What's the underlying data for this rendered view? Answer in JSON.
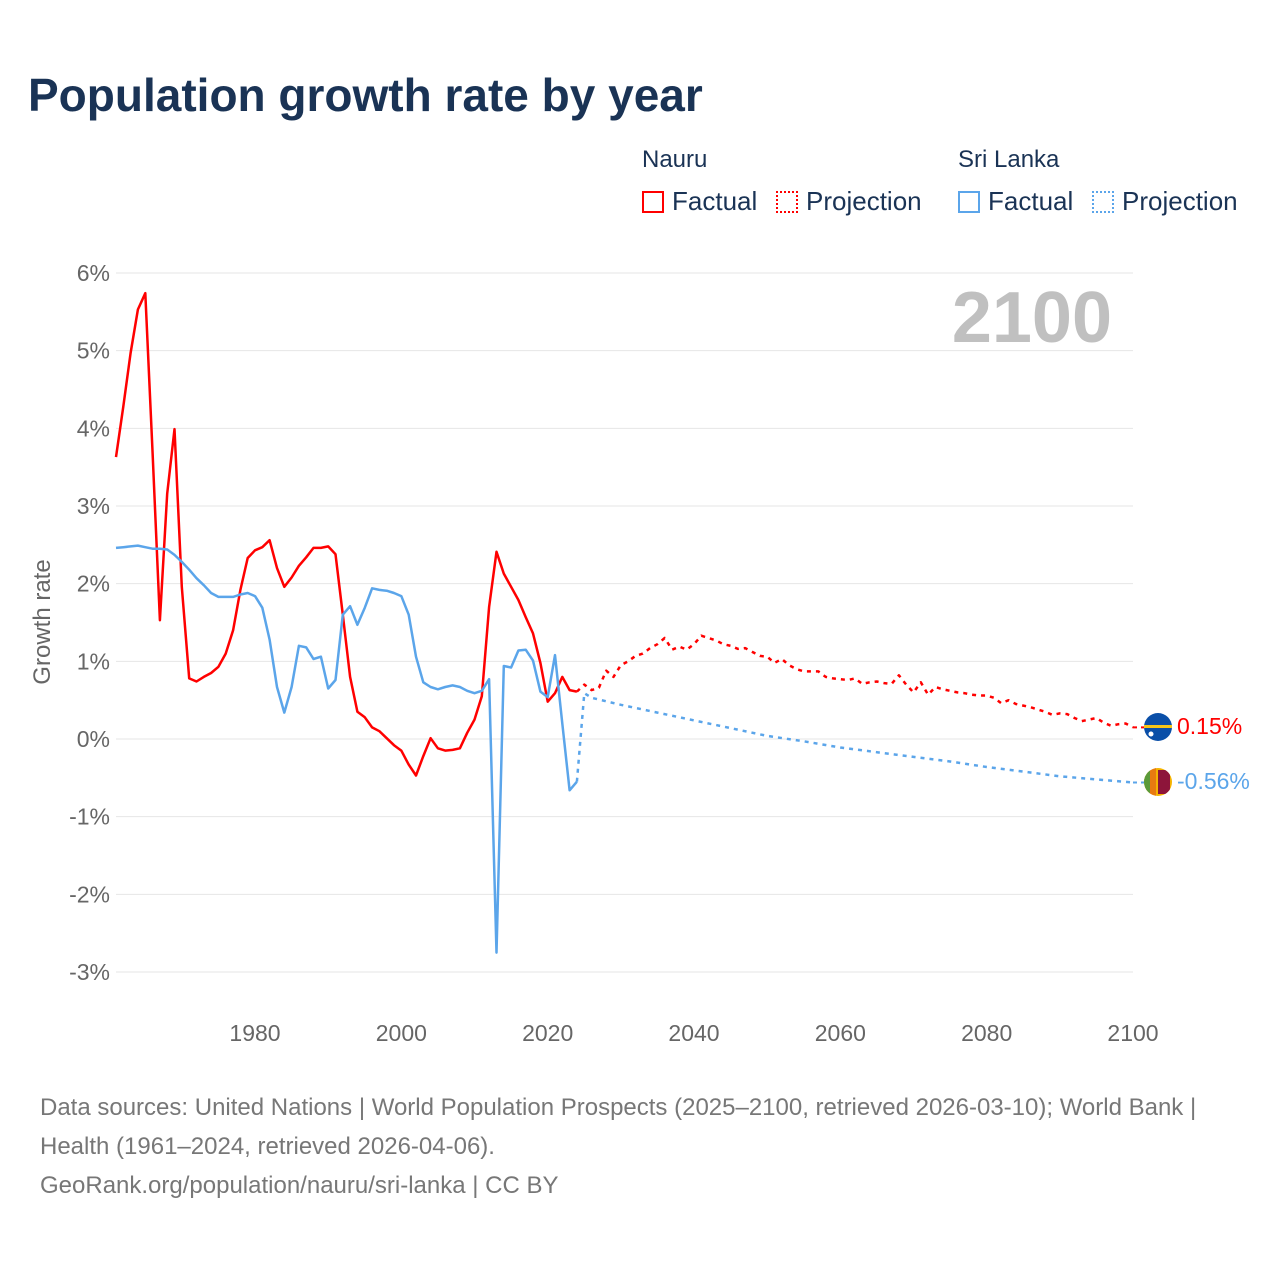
{
  "title": "Population growth rate by year",
  "legend": {
    "groups": [
      {
        "name": "Nauru",
        "factual": "Factual",
        "projection": "Projection",
        "color": "#ff0000"
      },
      {
        "name": "Sri Lanka",
        "factual": "Factual",
        "projection": "Projection",
        "color": "#5ba5ea"
      }
    ]
  },
  "year_label": "2100",
  "end_labels": {
    "nauru": "0.15%",
    "sri_lanka": "-0.56%"
  },
  "source": {
    "line1": "Data sources: United Nations | World Population Prospects (2025–2100, retrieved 2026-03-10); World Bank | Health (1961–2024, retrieved 2026-04-06).",
    "line2": "GeoRank.org/population/nauru/sri-lanka | CC BY"
  },
  "chart_data": {
    "type": "line",
    "title": "Population growth rate by year",
    "xlabel": "",
    "ylabel": "Growth rate",
    "xlim": [
      1961,
      2100
    ],
    "ylim": [
      -3,
      6
    ],
    "x_ticks": [
      1980,
      2000,
      2020,
      2040,
      2060,
      2080,
      2100
    ],
    "x_tick_labels": [
      "1980",
      "2000",
      "2020",
      "2040",
      "2060",
      "2080",
      "2100"
    ],
    "y_ticks": [
      6,
      5,
      4,
      3,
      2,
      1,
      0,
      -1,
      -2,
      -3
    ],
    "y_tick_labels": [
      "6%",
      "5%",
      "4%",
      "3%",
      "2%",
      "1%",
      "0%",
      "-1%",
      "-2%",
      "-3%"
    ],
    "grid": true,
    "series": [
      {
        "name": "Nauru",
        "kind": "factual",
        "color": "#ff0000",
        "x_start": 1961,
        "values": [
          3.63,
          4.28,
          4.97,
          5.53,
          5.74,
          3.68,
          1.53,
          3.16,
          3.99,
          1.96,
          0.78,
          0.74,
          0.8,
          0.85,
          0.93,
          1.1,
          1.4,
          1.92,
          2.33,
          2.43,
          2.47,
          2.56,
          2.2,
          1.96,
          2.08,
          2.23,
          2.34,
          2.46,
          2.46,
          2.48,
          2.38,
          1.6,
          0.8,
          0.35,
          0.28,
          0.15,
          0.1,
          0.01,
          -0.08,
          -0.15,
          -0.33,
          -0.47,
          -0.22,
          0.01,
          -0.12,
          -0.15,
          -0.14,
          -0.12,
          0.08,
          0.25,
          0.55,
          1.7,
          2.41,
          2.13,
          1.96,
          1.79,
          1.57,
          1.36,
          0.98,
          0.48,
          0.59,
          0.8,
          0.63,
          0.61
        ]
      },
      {
        "name": "Nauru",
        "kind": "projection",
        "color": "#ff0000",
        "x_start": 2024,
        "values": [
          0.61,
          0.7,
          0.63,
          0.66,
          0.88,
          0.8,
          0.95,
          1.0,
          1.07,
          1.1,
          1.17,
          1.22,
          1.3,
          1.15,
          1.19,
          1.15,
          1.22,
          1.33,
          1.3,
          1.27,
          1.22,
          1.2,
          1.16,
          1.17,
          1.12,
          1.07,
          1.06,
          0.98,
          1.03,
          0.95,
          0.9,
          0.87,
          0.87,
          0.87,
          0.8,
          0.78,
          0.77,
          0.76,
          0.78,
          0.71,
          0.73,
          0.74,
          0.72,
          0.71,
          0.82,
          0.7,
          0.6,
          0.73,
          0.57,
          0.67,
          0.64,
          0.62,
          0.6,
          0.59,
          0.57,
          0.56,
          0.56,
          0.53,
          0.46,
          0.5,
          0.45,
          0.43,
          0.41,
          0.38,
          0.35,
          0.31,
          0.33,
          0.32,
          0.27,
          0.23,
          0.25,
          0.27,
          0.21,
          0.17,
          0.19,
          0.2,
          0.15
        ]
      },
      {
        "name": "Sri Lanka",
        "kind": "factual",
        "color": "#5ba5ea",
        "x_start": 1961,
        "values": [
          2.46,
          2.47,
          2.48,
          2.49,
          2.47,
          2.45,
          2.45,
          2.44,
          2.37,
          2.28,
          2.18,
          2.07,
          1.98,
          1.88,
          1.83,
          1.83,
          1.83,
          1.86,
          1.88,
          1.84,
          1.69,
          1.28,
          0.67,
          0.34,
          0.67,
          1.2,
          1.18,
          1.03,
          1.06,
          0.65,
          0.76,
          1.6,
          1.71,
          1.47,
          1.69,
          1.94,
          1.92,
          1.91,
          1.88,
          1.84,
          1.6,
          1.06,
          0.73,
          0.67,
          0.64,
          0.67,
          0.69,
          0.67,
          0.62,
          0.59,
          0.62,
          0.77,
          -2.75,
          0.94,
          0.92,
          1.14,
          1.15,
          1.01,
          0.61,
          0.54,
          1.08,
          0.2,
          -0.66,
          -0.55
        ]
      },
      {
        "name": "Sri Lanka",
        "kind": "projection",
        "color": "#5ba5ea",
        "x": [
          2024,
          2025,
          2026,
          2030,
          2035,
          2040,
          2045,
          2050,
          2055,
          2060,
          2065,
          2070,
          2075,
          2080,
          2085,
          2090,
          2095,
          2100
        ],
        "values": [
          -0.55,
          0.59,
          0.53,
          0.44,
          0.34,
          0.24,
          0.14,
          0.04,
          -0.03,
          -0.11,
          -0.17,
          -0.23,
          -0.29,
          -0.36,
          -0.42,
          -0.48,
          -0.52,
          -0.56
        ]
      }
    ]
  }
}
